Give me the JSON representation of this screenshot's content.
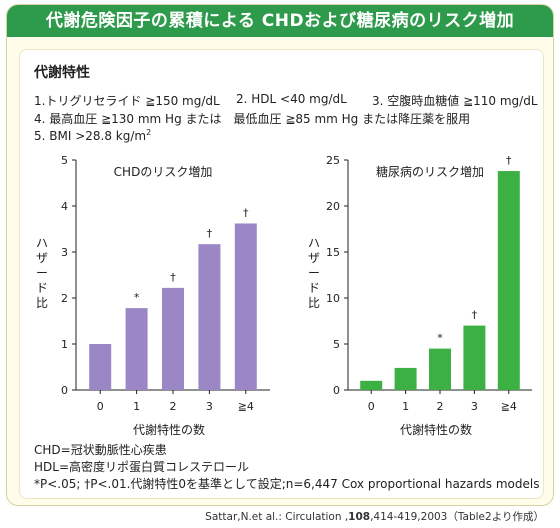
{
  "header": {
    "title": "代謝危険因子の累積による CHDおよび糖尿病のリスク増加"
  },
  "criteria": {
    "heading": "代謝特性",
    "items": [
      "1.トリグリセライド ≧150 mg/dL",
      "2. HDL <40 mg/dL",
      "3. 空腹時血糖値 ≧110 mg/dL",
      "4. 最高血圧 ≧130 mm Hg または　最低血圧 ≧85 mm Hg または降圧薬を服用",
      "5. BMI >28.8 kg/m",
      "2"
    ]
  },
  "chart_data": [
    {
      "type": "bar",
      "title": "CHDのリスク増加",
      "xlabel": "代謝特性の数",
      "ylabel": "ハザード比",
      "categories": [
        "0",
        "1",
        "2",
        "3",
        "≧4"
      ],
      "values": [
        1.0,
        1.78,
        2.22,
        3.17,
        3.62
      ],
      "annotations": [
        "",
        "*",
        "†",
        "†",
        "†"
      ],
      "ylim": [
        0,
        5
      ],
      "yticks": [
        "0",
        "1",
        "2",
        "3",
        "4",
        "5"
      ],
      "color": "#9b87c6",
      "grid": false
    },
    {
      "type": "bar",
      "title": "糖尿病のリスク増加",
      "xlabel": "代謝特性の数",
      "ylabel": "ハザード比",
      "categories": [
        "0",
        "1",
        "2",
        "3",
        "≧4"
      ],
      "values": [
        1.0,
        2.4,
        4.5,
        7.0,
        23.8
      ],
      "annotations": [
        "",
        "",
        "*",
        "†",
        "†"
      ],
      "ylim": [
        0,
        25
      ],
      "yticks": [
        "0",
        "5",
        "10",
        "15",
        "20",
        "25"
      ],
      "color": "#3cb043",
      "grid": false
    }
  ],
  "notes": {
    "line1": "CHD=冠状動脈性心疾患",
    "line2": "HDL=高密度リポ蛋白質コレステロール",
    "line3": "*P<.05; †P<.01.代謝特性0を基準として設定;n=6,447 Cox proportional hazards models"
  },
  "citation": {
    "prefix": "Sattar,N.et al.: Circulation ,",
    "volume": "108",
    "suffix": ",414-419,2003（Table2より作成）"
  }
}
